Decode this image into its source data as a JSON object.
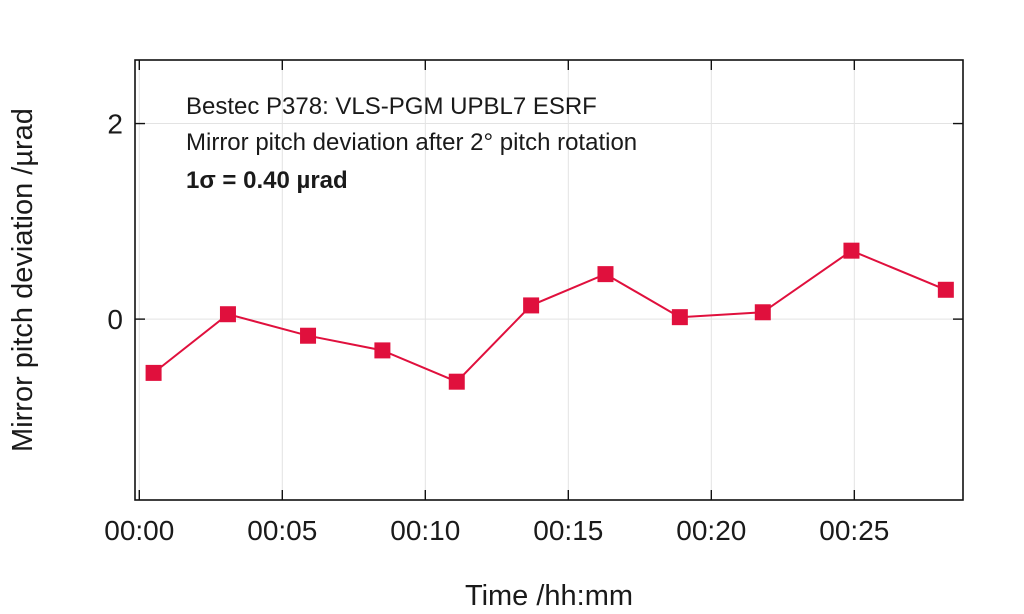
{
  "chart_data": {
    "type": "line",
    "title": "",
    "xlabel": "Time /hh:mm",
    "ylabel": "Mirror pitch deviation /µrad",
    "annotations": [
      "Bestec P378: VLS-PGM UPBL7 ESRF",
      "Mirror pitch deviation after 2° pitch rotation",
      "1σ = 0.40 µrad"
    ],
    "x_ticks": [
      {
        "value": 0,
        "label": "00:00"
      },
      {
        "value": 5,
        "label": "00:05"
      },
      {
        "value": 10,
        "label": "00:10"
      },
      {
        "value": 15,
        "label": "00:15"
      },
      {
        "value": 20,
        "label": "00:20"
      },
      {
        "value": 25,
        "label": "00:25"
      }
    ],
    "y_ticks": [
      {
        "value": 0,
        "label": "0"
      },
      {
        "value": 2,
        "label": "2"
      }
    ],
    "xlim": [
      -0.15,
      28.8
    ],
    "ylim": [
      -1.85,
      2.65
    ],
    "grid": true,
    "series": [
      {
        "color": "#e0103d",
        "marker": "square",
        "x": [
          0.5,
          3.1,
          5.9,
          8.5,
          11.1,
          13.7,
          16.3,
          18.9,
          21.8,
          24.9,
          28.2
        ],
        "y": [
          -0.55,
          0.05,
          -0.17,
          -0.32,
          -0.64,
          0.14,
          0.46,
          0.02,
          0.07,
          0.7,
          0.3
        ]
      }
    ]
  }
}
